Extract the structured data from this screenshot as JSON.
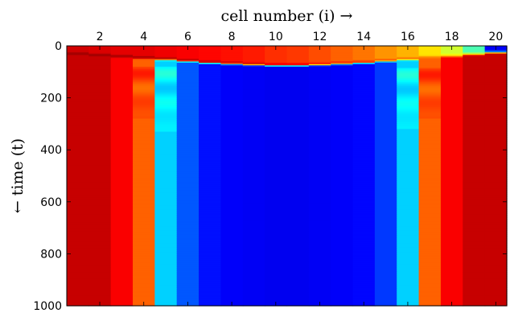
{
  "chart_data": {
    "type": "heatmap",
    "xlabel": "cell number (i) →",
    "ylabel": "← time (t)",
    "x_axis_position": "top",
    "y_axis_inverted": true,
    "xlim": [
      0.5,
      20.5
    ],
    "ylim": [
      0,
      1000
    ],
    "x_ticks": [
      2,
      4,
      6,
      8,
      10,
      12,
      14,
      16,
      18,
      20
    ],
    "y_ticks": [
      0,
      200,
      400,
      600,
      800,
      1000
    ],
    "colormap": "jet",
    "value_range": [
      0,
      1
    ],
    "cells": [
      1,
      2,
      3,
      4,
      5,
      6,
      7,
      8,
      9,
      10,
      11,
      12,
      13,
      14,
      15,
      16,
      17,
      18,
      19,
      20
    ],
    "initial_values": [
      0.92,
      0.91,
      0.9,
      0.9,
      0.89,
      0.88,
      0.87,
      0.86,
      0.85,
      0.83,
      0.82,
      0.8,
      0.78,
      0.76,
      0.73,
      0.7,
      0.65,
      0.58,
      0.45,
      0.12
    ],
    "front_time": [
      30,
      35,
      40,
      45,
      50,
      56,
      62,
      66,
      70,
      72,
      72,
      70,
      66,
      62,
      56,
      50,
      44,
      38,
      30,
      22
    ],
    "final_values": [
      0.93,
      0.93,
      0.88,
      0.78,
      0.33,
      0.21,
      0.14,
      0.12,
      0.115,
      0.11,
      0.11,
      0.115,
      0.12,
      0.13,
      0.18,
      0.33,
      0.78,
      0.88,
      0.93,
      0.93
    ],
    "transient_bands": [
      {
        "cell": 4,
        "t0": 80,
        "t1": 280,
        "value": 0.8
      },
      {
        "cell": 5,
        "t0": 80,
        "t1": 330,
        "value": 0.36
      },
      {
        "cell": 16,
        "t0": 85,
        "t1": 320,
        "value": 0.36
      },
      {
        "cell": 17,
        "t0": 85,
        "t1": 280,
        "value": 0.8
      }
    ]
  }
}
